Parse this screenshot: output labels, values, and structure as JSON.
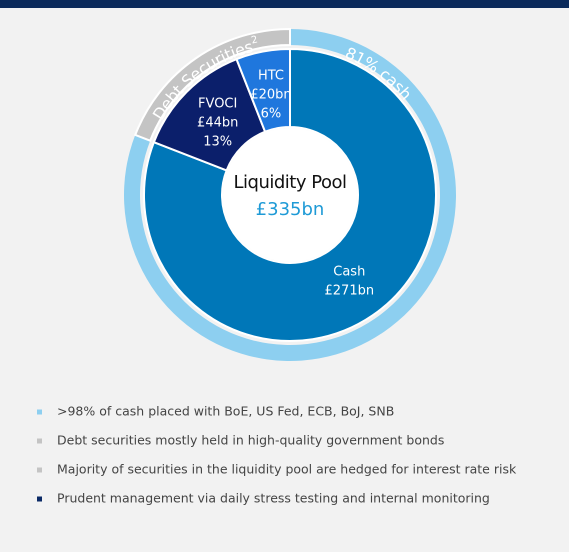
{
  "chart_data": {
    "type": "donut",
    "center_label": "Liquidity Pool",
    "total": 335,
    "total_label": "£335bn",
    "categories": [
      "Cash",
      "FVOCI",
      "HTC"
    ],
    "values": [
      271,
      44,
      20
    ],
    "value_labels": [
      "£271bn",
      "£44bn",
      "£20bn"
    ],
    "percents": [
      null,
      13,
      6
    ],
    "percent_labels": [
      null,
      "13%",
      "6%"
    ],
    "colors": [
      "#0077b8",
      "#0b1f6b",
      "#1f77dd"
    ],
    "outer_ring": {
      "cash": {
        "value": 81,
        "label": "81% cash",
        "color": "#8dcff0"
      },
      "debt": {
        "label": "Debt Securities",
        "note": "2",
        "color": "#c4c4c4"
      }
    }
  },
  "bullets": [
    {
      "text": ">98% of cash placed with BoE, US Fed, ECB, BoJ, SNB",
      "color": "#8dcff0"
    },
    {
      "text": "Debt securities mostly held in high-quality government bonds",
      "color": "#c4c4c4"
    },
    {
      "text": "Majority of securities in the liquidity pool are hedged for interest rate risk",
      "color": "#c4c4c4"
    },
    {
      "text": "Prudent management via daily stress testing and internal monitoring",
      "color": "#0b2a66"
    }
  ]
}
